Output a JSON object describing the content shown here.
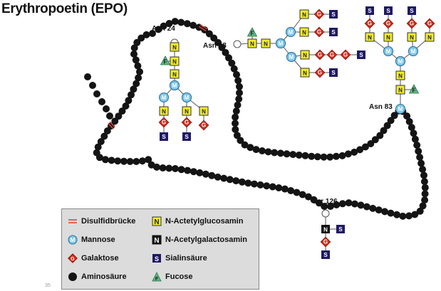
{
  "title": "Erythropoetin (EPO)",
  "slide_number": "35",
  "sites": {
    "asn24": "Asn 24",
    "asn38": "Asn 38",
    "asn83": "Asn 83",
    "ser126": "Ser 126"
  },
  "symbols": {
    "n_acetylglucosamin": "N",
    "n_acetylgalactosamin": "N",
    "sialinsaeure": "S",
    "fucose": "F",
    "mannose": "M",
    "galaktose": "G"
  },
  "legend": {
    "disulfid": "Disulfidbrücke",
    "mannose": "Mannose",
    "galaktose": "Galaktose",
    "aminosaeure": "Aminosäure",
    "n_acetylglucosamin": "N-Actetylglucosamin",
    "n_acetylgalactosamin": "N-Acetylgalactosamin",
    "sialinsaeure": "Sialinsäure",
    "fucose": "Fucose"
  },
  "colors": {
    "amino_acid": "#141414",
    "mannose": "#7fc8ea",
    "n_acetylglucosamin": "#f2ec2c",
    "galaktose": "#d42a1a",
    "sialinsaeure": "#1f1964",
    "fucose": "#5cb881",
    "disulfid": "#e0453a",
    "n_acetylgalactosamin": "#111111"
  }
}
